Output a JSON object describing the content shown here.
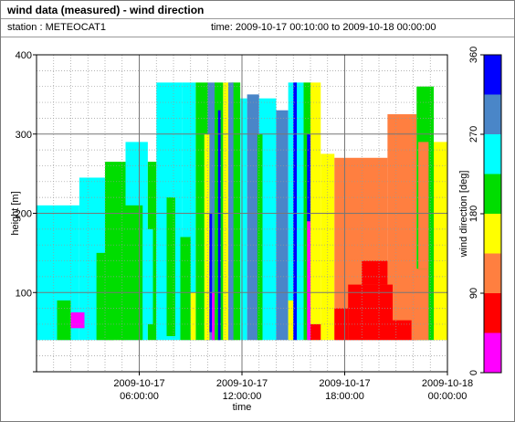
{
  "header": {
    "title": "wind data (measured) - wind direction",
    "station_label": "station : METEOCAT1",
    "time_label": "time: 2009-10-17 00:10:00 to 2009-10-18 00:00:00"
  },
  "chart_data": {
    "type": "heatmap",
    "title": "wind data (measured) - wind direction",
    "xlabel": "time",
    "ylabel": "height [m]",
    "colorbar_label": "wind direction [deg]",
    "xlim_hours": [
      0,
      24
    ],
    "ylim": [
      0,
      400
    ],
    "x_ticks": [
      {
        "hours": 6,
        "line1": "2009-10-17",
        "line2": "06:00:00"
      },
      {
        "hours": 12,
        "line1": "2009-10-17",
        "line2": "12:00:00"
      },
      {
        "hours": 18,
        "line1": "2009-10-17",
        "line2": "18:00:00"
      },
      {
        "hours": 24,
        "line1": "2009-10-18",
        "line2": "00:00:00"
      }
    ],
    "y_ticks": [
      100,
      200,
      300,
      400
    ],
    "grid": true,
    "colorbar": {
      "ticks": [
        0,
        90,
        180,
        270,
        360
      ],
      "bins": [
        {
          "from": 0,
          "to": 45,
          "color": "#ff00ff"
        },
        {
          "from": 45,
          "to": 90,
          "color": "#ff0000"
        },
        {
          "from": 90,
          "to": 135,
          "color": "#ff7f40"
        },
        {
          "from": 135,
          "to": 180,
          "color": "#ffff00"
        },
        {
          "from": 180,
          "to": 225,
          "color": "#00dd00"
        },
        {
          "from": 225,
          "to": 270,
          "color": "#00ffff"
        },
        {
          "from": 270,
          "to": 315,
          "color": "#4a86c8"
        },
        {
          "from": 315,
          "to": 360,
          "color": "#0000ff"
        }
      ]
    },
    "height_range_measured": [
      40,
      365
    ],
    "regions": [
      {
        "from_h": 0.0,
        "to_h": 2.5,
        "top_m": 210,
        "direction_deg": 250
      },
      {
        "from_h": 2.5,
        "to_h": 4.0,
        "top_m": 245,
        "direction_deg": 245
      },
      {
        "from_h": 4.0,
        "to_h": 5.2,
        "top_m": 265,
        "direction_deg": 220
      },
      {
        "from_h": 5.2,
        "to_h": 6.5,
        "top_m": 290,
        "direction_deg": 230
      },
      {
        "from_h": 6.5,
        "to_h": 7.0,
        "top_m": 265,
        "direction_deg": 200
      },
      {
        "from_h": 7.0,
        "to_h": 8.5,
        "top_m": 365,
        "direction_deg": 225
      },
      {
        "from_h": 8.5,
        "to_h": 9.3,
        "top_m": 365,
        "direction_deg": 250
      },
      {
        "from_h": 9.3,
        "to_h": 10.0,
        "top_m": 365,
        "direction_deg": 200
      },
      {
        "from_h": 10.0,
        "to_h": 10.4,
        "top_m": 365,
        "direction_deg": 290
      },
      {
        "from_h": 10.4,
        "to_h": 10.9,
        "top_m": 365,
        "direction_deg": 195
      },
      {
        "from_h": 10.9,
        "to_h": 11.4,
        "top_m": 365,
        "direction_deg": 160
      },
      {
        "from_h": 11.4,
        "to_h": 11.9,
        "top_m": 365,
        "direction_deg": 200
      },
      {
        "from_h": 11.9,
        "to_h": 12.3,
        "top_m": 345,
        "direction_deg": 250
      },
      {
        "from_h": 12.3,
        "to_h": 13.0,
        "top_m": 350,
        "direction_deg": 285
      },
      {
        "from_h": 13.0,
        "to_h": 14.0,
        "top_m": 345,
        "direction_deg": 255
      },
      {
        "from_h": 14.0,
        "to_h": 14.7,
        "top_m": 330,
        "direction_deg": 280
      },
      {
        "from_h": 14.7,
        "to_h": 15.6,
        "top_m": 365,
        "direction_deg": 250
      },
      {
        "from_h": 15.6,
        "to_h": 16.0,
        "top_m": 365,
        "direction_deg": 200
      },
      {
        "from_h": 16.0,
        "to_h": 16.6,
        "top_m": 365,
        "direction_deg": 160
      },
      {
        "from_h": 16.6,
        "to_h": 17.4,
        "top_m": 275,
        "direction_deg": 160
      },
      {
        "from_h": 17.4,
        "to_h": 20.5,
        "top_m": 270,
        "direction_deg": 120
      },
      {
        "from_h": 20.5,
        "to_h": 22.2,
        "top_m": 325,
        "direction_deg": 125
      },
      {
        "from_h": 22.2,
        "to_h": 23.2,
        "top_m": 360,
        "direction_deg": 195
      },
      {
        "from_h": 23.2,
        "to_h": 24.0,
        "top_m": 290,
        "direction_deg": 160
      }
    ],
    "patches": [
      {
        "from_h": 1.2,
        "to_h": 2.0,
        "bottom_m": 40,
        "top_m": 90,
        "direction_deg": 215
      },
      {
        "from_h": 2.0,
        "to_h": 2.8,
        "bottom_m": 55,
        "top_m": 75,
        "direction_deg": 0
      },
      {
        "from_h": 3.5,
        "to_h": 4.5,
        "bottom_m": 40,
        "top_m": 150,
        "direction_deg": 200
      },
      {
        "from_h": 5.0,
        "to_h": 6.2,
        "bottom_m": 40,
        "top_m": 210,
        "direction_deg": 200
      },
      {
        "from_h": 6.2,
        "to_h": 6.8,
        "bottom_m": 60,
        "top_m": 180,
        "direction_deg": 250
      },
      {
        "from_h": 7.6,
        "to_h": 8.1,
        "bottom_m": 45,
        "top_m": 220,
        "direction_deg": 210
      },
      {
        "from_h": 8.4,
        "to_h": 9.0,
        "bottom_m": 40,
        "top_m": 170,
        "direction_deg": 200
      },
      {
        "from_h": 9.0,
        "to_h": 9.3,
        "bottom_m": 40,
        "top_m": 100,
        "direction_deg": 160
      },
      {
        "from_h": 9.8,
        "to_h": 10.1,
        "bottom_m": 40,
        "top_m": 300,
        "direction_deg": 160
      },
      {
        "from_h": 10.1,
        "to_h": 10.25,
        "bottom_m": 50,
        "top_m": 200,
        "direction_deg": 320
      },
      {
        "from_h": 10.25,
        "to_h": 10.4,
        "bottom_m": 40,
        "top_m": 100,
        "direction_deg": 30
      },
      {
        "from_h": 10.6,
        "to_h": 10.75,
        "bottom_m": 40,
        "top_m": 330,
        "direction_deg": 330
      },
      {
        "from_h": 11.2,
        "to_h": 11.5,
        "bottom_m": 40,
        "top_m": 365,
        "direction_deg": 290
      },
      {
        "from_h": 12.9,
        "to_h": 13.2,
        "bottom_m": 40,
        "top_m": 300,
        "direction_deg": 200
      },
      {
        "from_h": 14.7,
        "to_h": 15.0,
        "bottom_m": 40,
        "top_m": 90,
        "direction_deg": 160
      },
      {
        "from_h": 15.0,
        "to_h": 15.2,
        "bottom_m": 40,
        "top_m": 365,
        "direction_deg": 330
      },
      {
        "from_h": 15.8,
        "to_h": 16.0,
        "bottom_m": 40,
        "top_m": 190,
        "direction_deg": 30
      },
      {
        "from_h": 15.8,
        "to_h": 16.0,
        "bottom_m": 190,
        "top_m": 300,
        "direction_deg": 330
      },
      {
        "from_h": 16.0,
        "to_h": 16.6,
        "bottom_m": 40,
        "top_m": 60,
        "direction_deg": 60
      },
      {
        "from_h": 17.4,
        "to_h": 18.2,
        "bottom_m": 40,
        "top_m": 80,
        "direction_deg": 60
      },
      {
        "from_h": 18.2,
        "to_h": 20.8,
        "bottom_m": 40,
        "top_m": 110,
        "direction_deg": 60
      },
      {
        "from_h": 19.0,
        "to_h": 20.5,
        "bottom_m": 110,
        "top_m": 140,
        "direction_deg": 60
      },
      {
        "from_h": 20.8,
        "to_h": 22.2,
        "bottom_m": 40,
        "top_m": 65,
        "direction_deg": 60
      },
      {
        "from_h": 21.9,
        "to_h": 22.9,
        "bottom_m": 40,
        "top_m": 130,
        "direction_deg": 120
      },
      {
        "from_h": 22.3,
        "to_h": 22.9,
        "bottom_m": 130,
        "top_m": 290,
        "direction_deg": 120
      }
    ]
  }
}
